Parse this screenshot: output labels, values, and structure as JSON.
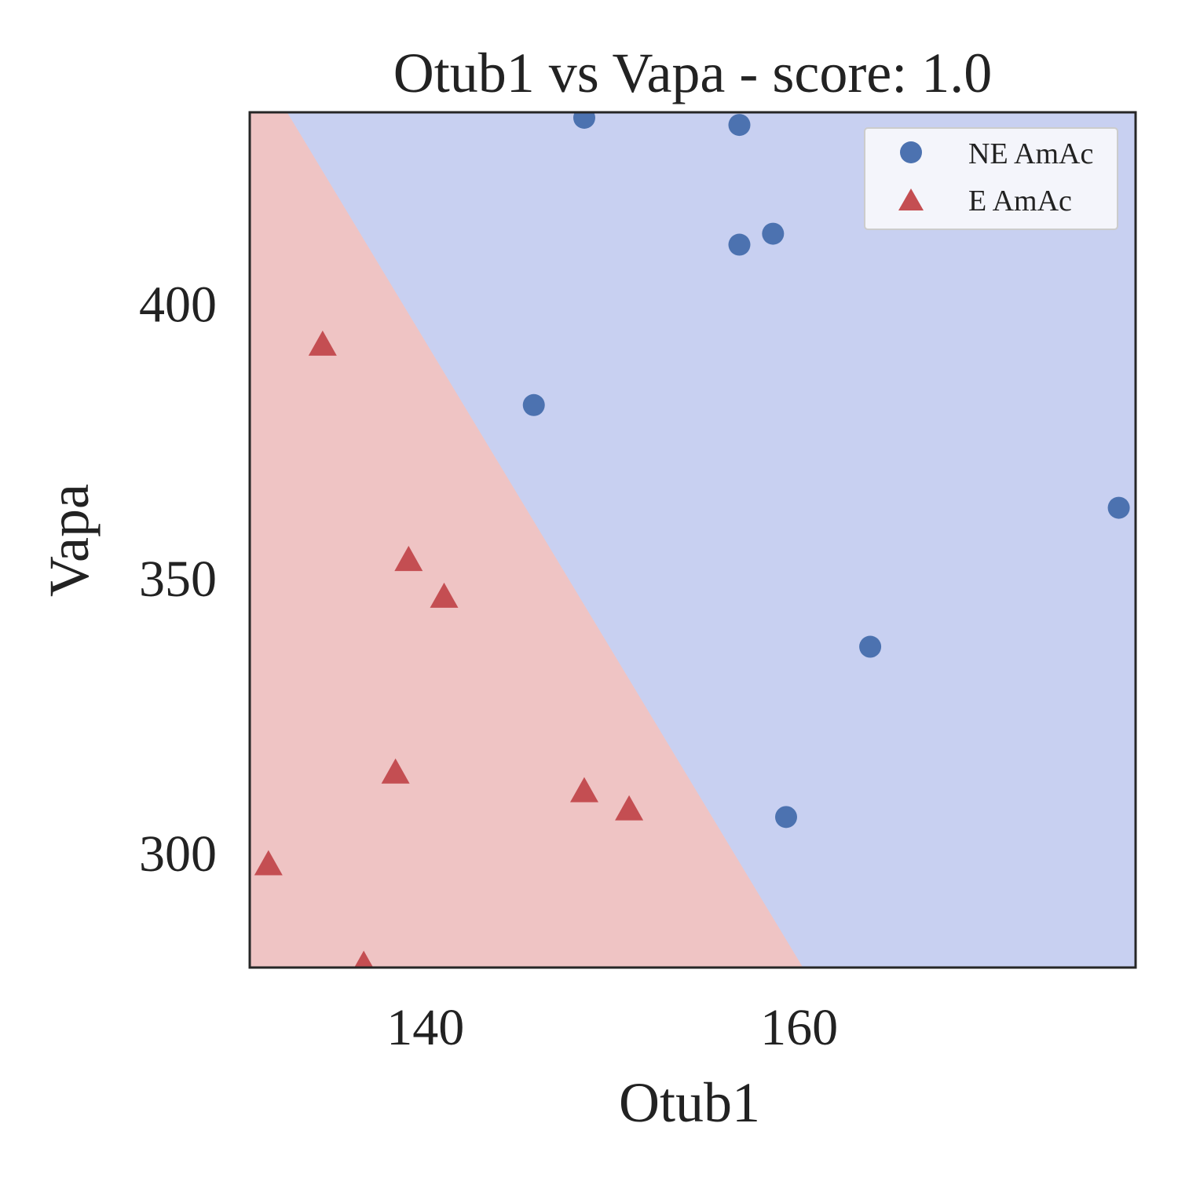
{
  "chart_data": {
    "type": "scatter",
    "title": "Otub1 vs Vapa - score: 1.0",
    "xlabel": "Otub1",
    "ylabel": "Vapa",
    "xlim": [
      130.6,
      178.0
    ],
    "ylim": [
      279.1,
      434.8
    ],
    "xticks": [
      140,
      160
    ],
    "yticks": [
      300,
      350,
      400
    ],
    "grid": false,
    "legend_position": "top-right",
    "decision_boundary": {
      "points": [
        [
          132.6,
          434.8
        ],
        [
          160.2,
          279.1
        ]
      ],
      "region_colors": {
        "E AmAc": "#efc4c4",
        "NE AmAc": "#c8d0f1"
      }
    },
    "series": [
      {
        "name": "NE AmAc",
        "marker": "circle",
        "color": "#4c72b0",
        "points": [
          [
            148.5,
            433.8
          ],
          [
            156.8,
            432.5
          ],
          [
            156.8,
            410.7
          ],
          [
            158.6,
            412.7
          ],
          [
            145.8,
            381.5
          ],
          [
            177.1,
            362.8
          ],
          [
            163.8,
            337.5
          ],
          [
            159.3,
            306.5
          ]
        ]
      },
      {
        "name": "E AmAc",
        "marker": "triangle",
        "color": "#c44e52",
        "points": [
          [
            134.5,
            392.5
          ],
          [
            139.1,
            353.3
          ],
          [
            141.0,
            346.6
          ],
          [
            138.4,
            314.6
          ],
          [
            148.5,
            311.2
          ],
          [
            150.9,
            307.9
          ],
          [
            131.6,
            297.9
          ],
          [
            136.7,
            279.6
          ]
        ]
      }
    ]
  }
}
